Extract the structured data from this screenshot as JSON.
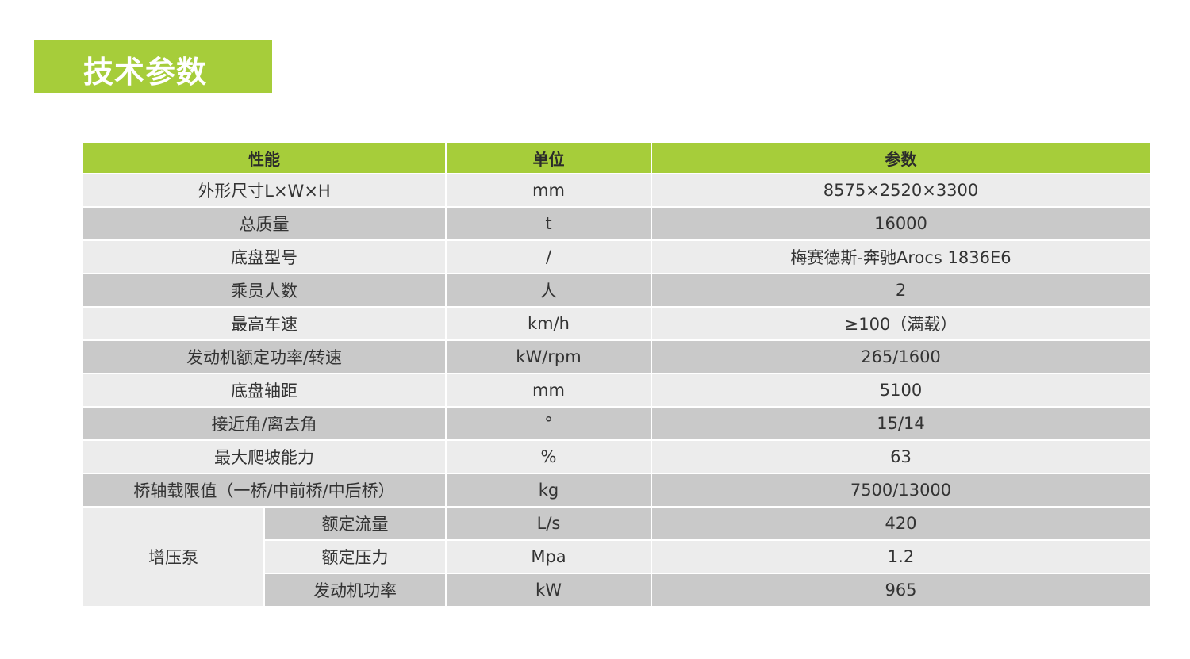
{
  "title": "技术参数",
  "colors": {
    "accent": "#a6cd3a",
    "row_light": "#ececec",
    "row_dark": "#c9c9c9"
  },
  "table": {
    "headers": [
      "性能",
      "单位",
      "参数"
    ],
    "rows": [
      {
        "name": "外形尺寸L×W×H",
        "unit": "mm",
        "value": "8575×2520×3300"
      },
      {
        "name": "总质量",
        "unit": "t",
        "value": "16000"
      },
      {
        "name": "底盘型号",
        "unit": "/",
        "value": "梅赛德斯-奔驰Arocs 1836E6"
      },
      {
        "name": "乘员人数",
        "unit": "人",
        "value": "2"
      },
      {
        "name": "最高车速",
        "unit": "km/h",
        "value": "≥100（满载）"
      },
      {
        "name": "发动机额定功率/转速",
        "unit": "kW/rpm",
        "value": "265/1600"
      },
      {
        "name": "底盘轴距",
        "unit": "mm",
        "value": "5100"
      },
      {
        "name": "接近角/离去角",
        "unit": "°",
        "value": "15/14"
      },
      {
        "name": "最大爬坡能力",
        "unit": "%",
        "value": "63"
      },
      {
        "name": "桥轴载限值（一桥/中前桥/中后桥）",
        "unit": "kg",
        "value": "7500/13000"
      }
    ],
    "group": {
      "label": "增压泵",
      "rows": [
        {
          "name": "额定流量",
          "unit": "L/s",
          "value": "420"
        },
        {
          "name": "额定压力",
          "unit": "Mpa",
          "value": "1.2"
        },
        {
          "name": "发动机功率",
          "unit": "kW",
          "value": "965"
        }
      ]
    }
  }
}
